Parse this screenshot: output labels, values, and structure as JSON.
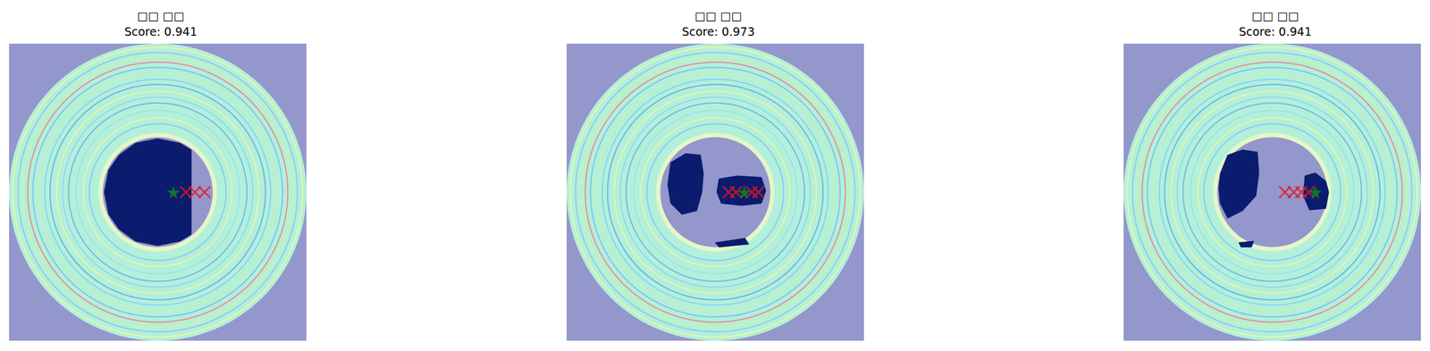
{
  "chart_data": [
    {
      "type": "image_overlay",
      "title": "□□ □□",
      "subtitle": "Score: 0.941",
      "xlim": [
        0,
        400
      ],
      "ylim": [
        400,
        0
      ],
      "tick_labels": false,
      "image": {
        "background": "#9497cc",
        "center": [
          200,
          200
        ],
        "outer_radius": 200,
        "disk_color": "#b3f0da",
        "inner_radius": 74,
        "hole_color": "#9497cc",
        "rim_color": "#e6f6c6",
        "rings": [
          {
            "r": 195,
            "color": "#eef5a4"
          },
          {
            "r": 188,
            "color": "#8ec8f0"
          },
          {
            "r": 182,
            "color": "#d0f0a8"
          },
          {
            "r": 175,
            "color": "#f08a8a"
          },
          {
            "r": 168,
            "color": "#80c0ee"
          },
          {
            "r": 160,
            "color": "#c8f0b0"
          },
          {
            "r": 152,
            "color": "#8ad0f0"
          },
          {
            "r": 145,
            "color": "#70b0ea"
          },
          {
            "r": 136,
            "color": "#e8f5a8"
          },
          {
            "r": 128,
            "color": "#90d8ee"
          },
          {
            "r": 120,
            "color": "#78b4ec"
          },
          {
            "r": 110,
            "color": "#a0e0e8"
          },
          {
            "r": 100,
            "color": "#e8f5a8"
          },
          {
            "r": 92,
            "color": "#8cc8f0"
          }
        ]
      },
      "regions": {
        "color": "#0b1c6f",
        "polygons": [
          [
            [
              245,
              143
            ],
            [
              230,
              134
            ],
            [
              200,
              128
            ],
            [
              170,
              134
            ],
            [
              148,
              150
            ],
            [
              134,
              170
            ],
            [
              128,
              200
            ],
            [
              134,
              230
            ],
            [
              148,
              250
            ],
            [
              170,
              266
            ],
            [
              200,
              272
            ],
            [
              230,
              266
            ],
            [
              245,
              257
            ]
          ]
        ]
      },
      "series": [
        {
          "type": "scatter",
          "marker": "x",
          "color": "#e8141c",
          "x": [
            238,
            250,
            263
          ],
          "y": [
            200,
            200,
            200
          ]
        },
        {
          "type": "scatter",
          "marker": "star",
          "color": "#138a13",
          "x": [
            221
          ],
          "y": [
            200
          ]
        }
      ]
    },
    {
      "type": "image_overlay",
      "title": "□□ □□",
      "subtitle": "Score: 0.973",
      "xlim": [
        0,
        400
      ],
      "ylim": [
        400,
        0
      ],
      "tick_labels": false,
      "image": {
        "background": "#9497cc",
        "center": [
          200,
          200
        ],
        "outer_radius": 200,
        "disk_color": "#b3f0da",
        "inner_radius": 74,
        "hole_color": "#9497cc",
        "rim_color": "#e6f6c6",
        "rings": [
          {
            "r": 195,
            "color": "#eef5a4"
          },
          {
            "r": 188,
            "color": "#8ec8f0"
          },
          {
            "r": 182,
            "color": "#d0f0a8"
          },
          {
            "r": 175,
            "color": "#f08a8a"
          },
          {
            "r": 168,
            "color": "#80c0ee"
          },
          {
            "r": 160,
            "color": "#c8f0b0"
          },
          {
            "r": 152,
            "color": "#8ad0f0"
          },
          {
            "r": 145,
            "color": "#70b0ea"
          },
          {
            "r": 136,
            "color": "#e8f5a8"
          },
          {
            "r": 128,
            "color": "#90d8ee"
          },
          {
            "r": 120,
            "color": "#78b4ec"
          },
          {
            "r": 110,
            "color": "#a0e0e8"
          },
          {
            "r": 100,
            "color": "#e8f5a8"
          },
          {
            "r": 92,
            "color": "#8cc8f0"
          }
        ]
      },
      "regions": {
        "color": "#0b1c6f",
        "polygons": [
          [
            [
              140,
              160
            ],
            [
              160,
              148
            ],
            [
              180,
              150
            ],
            [
              184,
              175
            ],
            [
              182,
              200
            ],
            [
              175,
              225
            ],
            [
              155,
              230
            ],
            [
              140,
              215
            ],
            [
              136,
              190
            ]
          ],
          [
            [
              205,
              182
            ],
            [
              230,
              178
            ],
            [
              262,
              180
            ],
            [
              268,
              198
            ],
            [
              262,
              215
            ],
            [
              235,
              218
            ],
            [
              208,
              215
            ],
            [
              202,
              200
            ]
          ],
          [
            [
              200,
              268
            ],
            [
              240,
              262
            ],
            [
              245,
              270
            ],
            [
              205,
              274
            ]
          ]
        ]
      },
      "series": [
        {
          "type": "scatter",
          "marker": "x",
          "color": "#e8141c",
          "x": [
            218,
            228,
            249,
            258
          ],
          "y": [
            200,
            200,
            200,
            200
          ]
        },
        {
          "type": "scatter",
          "marker": "star",
          "color": "#138a13",
          "x": [
            239
          ],
          "y": [
            200
          ]
        }
      ]
    },
    {
      "type": "image_overlay",
      "title": "□□ □□",
      "subtitle": "Score: 0.941",
      "xlim": [
        0,
        400
      ],
      "ylim": [
        400,
        0
      ],
      "tick_labels": false,
      "image": {
        "background": "#9497cc",
        "center": [
          200,
          200
        ],
        "outer_radius": 200,
        "disk_color": "#b3f0da",
        "inner_radius": 74,
        "hole_color": "#9497cc",
        "rim_color": "#e6f6c6",
        "rings": [
          {
            "r": 195,
            "color": "#eef5a4"
          },
          {
            "r": 188,
            "color": "#8ec8f0"
          },
          {
            "r": 182,
            "color": "#d0f0a8"
          },
          {
            "r": 175,
            "color": "#f08a8a"
          },
          {
            "r": 168,
            "color": "#80c0ee"
          },
          {
            "r": 160,
            "color": "#c8f0b0"
          },
          {
            "r": 152,
            "color": "#8ad0f0"
          },
          {
            "r": 145,
            "color": "#70b0ea"
          },
          {
            "r": 136,
            "color": "#e8f5a8"
          },
          {
            "r": 128,
            "color": "#90d8ee"
          },
          {
            "r": 120,
            "color": "#78b4ec"
          },
          {
            "r": 110,
            "color": "#a0e0e8"
          },
          {
            "r": 100,
            "color": "#e8f5a8"
          },
          {
            "r": 92,
            "color": "#8cc8f0"
          }
        ]
      },
      "regions": {
        "color": "#0b1c6f",
        "polygons": [
          [
            [
              130,
              175
            ],
            [
              140,
              150
            ],
            [
              160,
              143
            ],
            [
              180,
              146
            ],
            [
              182,
              175
            ],
            [
              178,
              205
            ],
            [
              160,
              225
            ],
            [
              140,
              235
            ],
            [
              130,
              215
            ],
            [
              128,
              195
            ]
          ],
          [
            [
              244,
              178
            ],
            [
              258,
              174
            ],
            [
              272,
              185
            ],
            [
              276,
              200
            ],
            [
              272,
              222
            ],
            [
              250,
              224
            ],
            [
              242,
              205
            ]
          ],
          [
            [
              155,
              268
            ],
            [
              175,
              266
            ],
            [
              172,
              274
            ],
            [
              158,
              274
            ]
          ]
        ]
      },
      "series": [
        {
          "type": "scatter",
          "marker": "x",
          "color": "#e8141c",
          "x": [
            217,
            229,
            239,
            249
          ],
          "y": [
            200,
            200,
            200,
            200
          ]
        },
        {
          "type": "scatter",
          "marker": "star",
          "color": "#138a13",
          "x": [
            258
          ],
          "y": [
            200
          ]
        }
      ]
    }
  ]
}
